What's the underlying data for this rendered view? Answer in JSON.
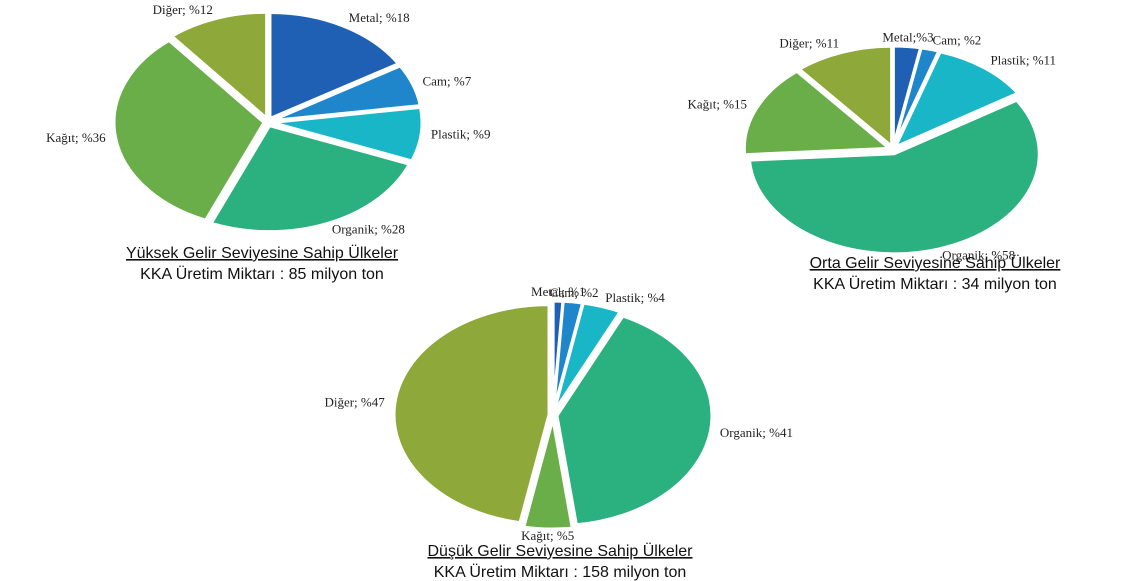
{
  "chart_data": [
    {
      "type": "pie",
      "title": "Yüksek Gelir Seviyesine Sahip Ülkeler",
      "subtitle": "KKA Üretim Miktarı : 85 milyon ton",
      "values": [
        18,
        7,
        9,
        28,
        36,
        12
      ],
      "value_labels": [
        "Metal; %18",
        "Cam; %7",
        "Plastik; %9",
        "Organik; %28",
        "Kağıt; %36",
        "Diğer; %12"
      ],
      "colors": [
        "#1f5fb4",
        "#1f86cc",
        "#19b6c8",
        "#2bb07f",
        "#6aae4a",
        "#8fa83a"
      ]
    },
    {
      "type": "pie",
      "title": "Orta Gelir Seviyesine Sahip Ülkeler",
      "subtitle": "KKA Üretim Miktarı : 34 milyon ton",
      "values": [
        3,
        2,
        11,
        58,
        15,
        11
      ],
      "value_labels": [
        "Metal;%3",
        "Cam; %2",
        "Plastik; %11",
        "Organik; %58",
        "Kağıt; %15",
        "Diğer; %11"
      ],
      "colors": [
        "#1f5fb4",
        "#1f86cc",
        "#19b6c8",
        "#2bb07f",
        "#6aae4a",
        "#8fa83a"
      ]
    },
    {
      "type": "pie",
      "title": "Düşük Gelir Seviyesine Sahip Ülkeler",
      "subtitle": "KKA Üretim Miktarı : 158 milyon ton",
      "values": [
        1,
        2,
        4,
        41,
        5,
        47
      ],
      "value_labels": [
        "Metal; %1",
        "Cam; %2",
        "Plastik; %4",
        "Organik; %41",
        "Kağıt; %5",
        "Diğer; %47"
      ],
      "colors": [
        "#1f5fb4",
        "#1f86cc",
        "#19b6c8",
        "#2bb07f",
        "#6aae4a",
        "#8fa83a"
      ]
    }
  ]
}
